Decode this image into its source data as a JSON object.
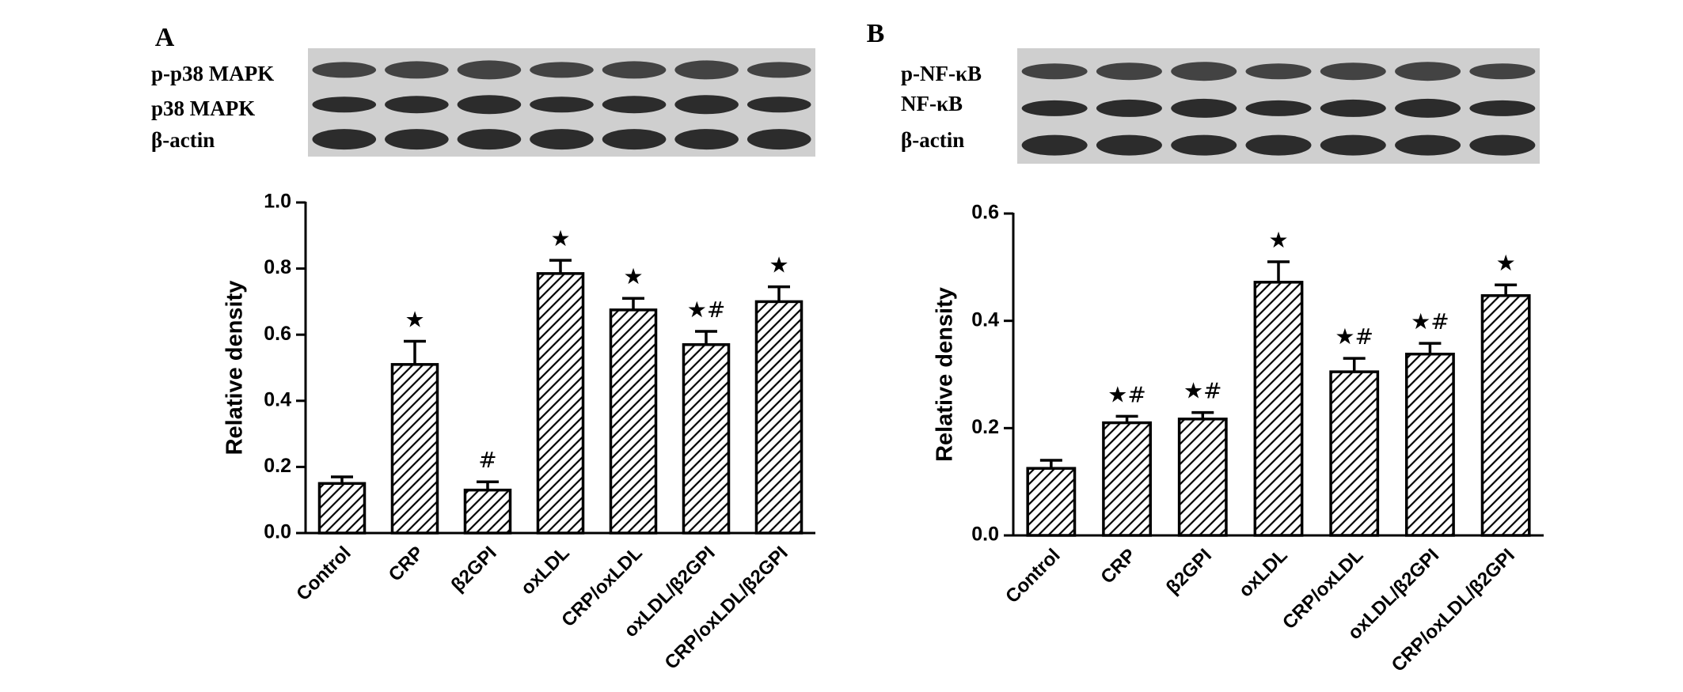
{
  "chart_data": [
    {
      "type": "bar",
      "panel": "A",
      "blot_labels": [
        "p-p38 MAPK",
        "p38 MAPK",
        "β-actin"
      ],
      "y_label": "Relative density",
      "categories": [
        "Control",
        "CRP",
        "β2GPI",
        "oxLDL",
        "CRP/oxLDL",
        "oxLDL/β2GPI",
        "CRP/oxLDL/β2GPI"
      ],
      "values": [
        0.15,
        0.51,
        0.13,
        0.785,
        0.675,
        0.57,
        0.7
      ],
      "errors": [
        0.02,
        0.07,
        0.025,
        0.04,
        0.035,
        0.04,
        0.045
      ],
      "annotations": [
        null,
        "★",
        "#",
        "★",
        "★",
        "★#",
        "★"
      ],
      "color": "#000000",
      "ylim": [
        0,
        1.0
      ],
      "yticks": [
        {
          "value": 0,
          "label": "0.0"
        },
        {
          "value": 0.2,
          "label": "0.2"
        },
        {
          "value": 0.4,
          "label": "0.4"
        },
        {
          "value": 0.6,
          "label": "0.6"
        },
        {
          "value": 0.8,
          "label": "0.8"
        },
        {
          "value": 1.0,
          "label": "1.0"
        }
      ]
    },
    {
      "type": "bar",
      "panel": "B",
      "blot_labels": [
        "p-NF-κB",
        "NF-κB",
        "β-actin"
      ],
      "y_label": "Relative density",
      "categories": [
        "Control",
        "CRP",
        "β2GPI",
        "oxLDL",
        "CRP/oxLDL",
        "oxLDL/β2GPI",
        "CRP/oxLDL/β2GPI"
      ],
      "values": [
        0.125,
        0.21,
        0.217,
        0.472,
        0.305,
        0.338,
        0.447
      ],
      "errors": [
        0.015,
        0.012,
        0.012,
        0.038,
        0.025,
        0.02,
        0.02
      ],
      "annotations": [
        null,
        "★#",
        "★#",
        "★",
        "★#",
        "★#",
        "★"
      ],
      "color": "#000000",
      "ylim": [
        0,
        0.6
      ],
      "yticks": [
        {
          "value": 0,
          "label": "0.0"
        },
        {
          "value": 0.2,
          "label": "0.2"
        },
        {
          "value": 0.4,
          "label": "0.4"
        },
        {
          "value": 0.6,
          "label": "0.6"
        }
      ]
    }
  ]
}
